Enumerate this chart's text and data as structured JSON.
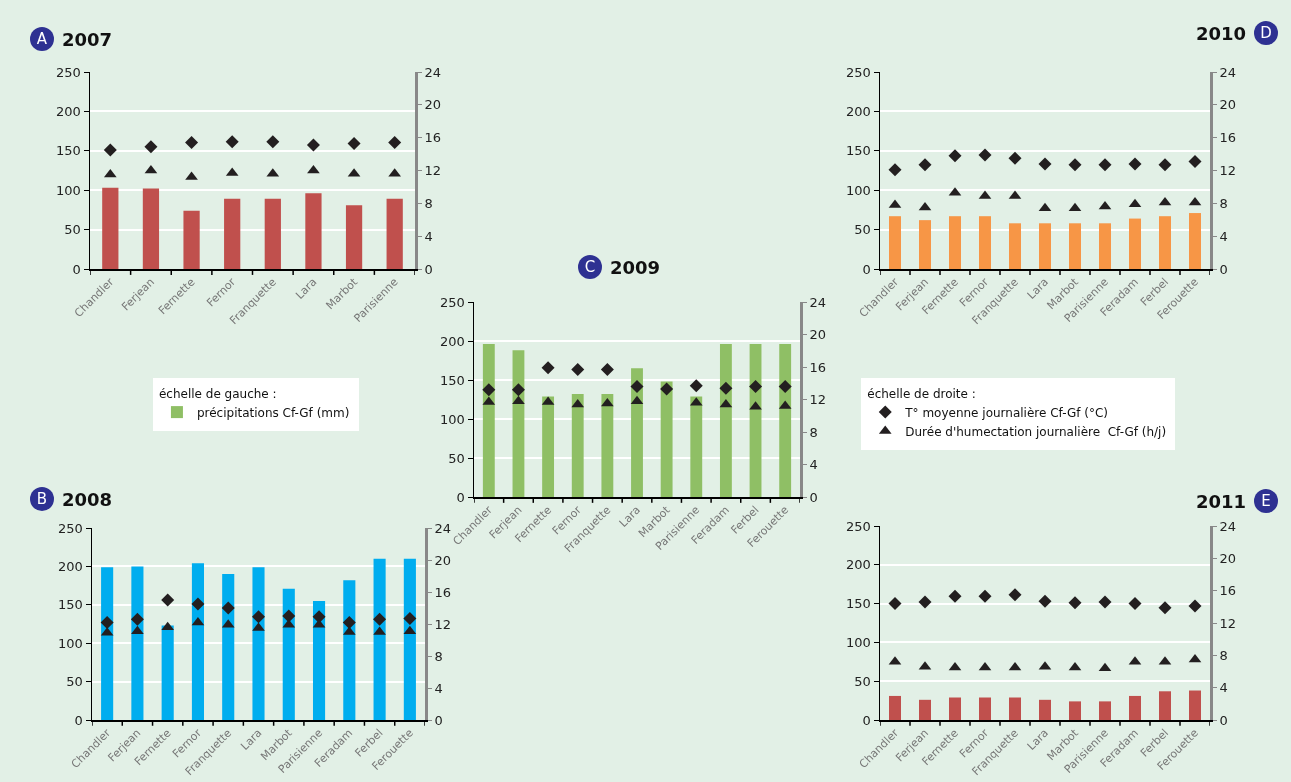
{
  "chart_data": [
    {
      "type": "bar",
      "title": "2007",
      "annotations": [
        "A"
      ],
      "categories": [
        "Chandler",
        "Ferjean",
        "Fernette",
        "Fernor",
        "Franquette",
        "Lara",
        "Marbot",
        "Parisienne"
      ],
      "series": [
        {
          "type": "bar",
          "color": "#c0504d",
          "values": [
            103,
            102,
            74,
            89,
            89,
            96,
            81,
            89
          ]
        },
        {
          "type": "scatter",
          "axis": "y2",
          "marker": "diamond",
          "color": "#231f20",
          "values": [
            14.5,
            14.9,
            15.4,
            15.5,
            15.5,
            15.1,
            15.3,
            15.4
          ]
        },
        {
          "type": "scatter",
          "axis": "y2",
          "marker": "triangle",
          "color": "#231f20",
          "values": [
            11.5,
            12.0,
            11.2,
            11.7,
            11.6,
            12.0,
            11.6,
            11.6
          ]
        }
      ],
      "ylim": [
        0,
        250
      ],
      "yticks": [
        0,
        50,
        100,
        150,
        200,
        250
      ],
      "y2lim": [
        0,
        24
      ],
      "y2ticks": [
        0,
        4,
        8,
        12,
        16,
        20,
        24
      ],
      "grid": "y"
    },
    {
      "type": "bar",
      "title": "2008",
      "annotations": [
        "B"
      ],
      "categories": [
        "Chandler",
        "Ferjean",
        "Fernette",
        "Fernor",
        "Franquette",
        "Lara",
        "Marbot",
        "Parisienne",
        "Feradam",
        "Ferbel",
        "Ferouette"
      ],
      "series": [
        {
          "type": "bar",
          "color": "#00adef",
          "values": [
            199,
            200,
            123,
            204,
            190,
            199,
            171,
            155,
            182,
            210,
            210
          ]
        },
        {
          "type": "scatter",
          "axis": "y2",
          "marker": "diamond",
          "color": "#231f20",
          "values": [
            12.2,
            12.6,
            15.0,
            14.5,
            14.0,
            12.9,
            13.0,
            12.9,
            12.2,
            12.6,
            12.7
          ]
        },
        {
          "type": "scatter",
          "axis": "y2",
          "marker": "triangle",
          "color": "#231f20",
          "values": [
            10.9,
            11.1,
            11.6,
            12.2,
            11.9,
            11.5,
            11.9,
            11.9,
            11.0,
            11.0,
            11.1
          ]
        }
      ],
      "ylim": [
        0,
        250
      ],
      "yticks": [
        0,
        50,
        100,
        150,
        200,
        250
      ],
      "y2lim": [
        0,
        24
      ],
      "y2ticks": [
        0,
        4,
        8,
        12,
        16,
        20,
        24
      ],
      "grid": "y"
    },
    {
      "type": "bar",
      "title": "2009",
      "annotations": [
        "C",
        "échelle de gauche :",
        "échelle de droite :"
      ],
      "categories": [
        "Chandler",
        "Ferjean",
        "Fernette",
        "Fernor",
        "Franquette",
        "Lara",
        "Marbot",
        "Parisienne",
        "Feradam",
        "Ferbel",
        "Ferouette"
      ],
      "series": [
        {
          "type": "bar",
          "name": "précipitations Cf-Gf (mm)",
          "color": "#8fbf65",
          "values": [
            196,
            188,
            129,
            132,
            132,
            165,
            148,
            129,
            196,
            196,
            196
          ]
        },
        {
          "type": "scatter",
          "axis": "y2",
          "marker": "diamond",
          "name": "T° moyenne journalière Cf-Gf (°C)",
          "color": "#231f20",
          "values": [
            13.2,
            13.2,
            15.9,
            15.7,
            15.7,
            13.6,
            13.3,
            13.7,
            13.4,
            13.6,
            13.6
          ]
        },
        {
          "type": "scatter",
          "axis": "y2",
          "marker": "triangle",
          "name": "Durée d'humectation journalière  Cf-Gf (h/j)",
          "color": "#231f20",
          "values": [
            11.7,
            11.8,
            11.7,
            11.4,
            11.5,
            11.8,
            null,
            11.6,
            11.4,
            11.1,
            11.2
          ]
        }
      ],
      "ylim": [
        0,
        250
      ],
      "yticks": [
        0,
        50,
        100,
        150,
        200,
        250
      ],
      "y2lim": [
        0,
        24
      ],
      "y2ticks": [
        0,
        4,
        8,
        12,
        16,
        20,
        24
      ],
      "grid": "y",
      "legend": "bottom"
    },
    {
      "type": "bar",
      "title": "2010",
      "annotations": [
        "D"
      ],
      "categories": [
        "Chandler",
        "Ferjean",
        "Fernette",
        "Fernor",
        "Franquette",
        "Lara",
        "Marbot",
        "Parisienne",
        "Feradam",
        "Ferbel",
        "Ferouette"
      ],
      "series": [
        {
          "type": "bar",
          "color": "#f79646",
          "values": [
            67,
            62,
            67,
            67,
            58,
            58,
            58,
            58,
            64,
            67,
            71
          ]
        },
        {
          "type": "scatter",
          "axis": "y2",
          "marker": "diamond",
          "color": "#231f20",
          "values": [
            12.1,
            12.7,
            13.8,
            13.9,
            13.5,
            12.8,
            12.7,
            12.7,
            12.8,
            12.7,
            13.1
          ]
        },
        {
          "type": "scatter",
          "axis": "y2",
          "marker": "triangle",
          "color": "#231f20",
          "values": [
            7.8,
            7.5,
            9.3,
            8.9,
            8.9,
            7.4,
            7.4,
            7.6,
            7.9,
            8.1,
            8.1
          ]
        }
      ],
      "ylim": [
        0,
        250
      ],
      "yticks": [
        0,
        50,
        100,
        150,
        200,
        250
      ],
      "y2lim": [
        0,
        24
      ],
      "y2ticks": [
        0,
        4,
        8,
        12,
        16,
        20,
        24
      ],
      "grid": "y"
    },
    {
      "type": "bar",
      "title": "2011",
      "annotations": [
        "E"
      ],
      "categories": [
        "Chandler",
        "Ferjean",
        "Fernette",
        "Fernor",
        "Franquette",
        "Lara",
        "Marbot",
        "Parisienne",
        "Feradam",
        "Ferbel",
        "Ferouette"
      ],
      "series": [
        {
          "type": "bar",
          "color": "#c0504d",
          "values": [
            31,
            26,
            29,
            29,
            29,
            26,
            24,
            24,
            31,
            37,
            38
          ]
        },
        {
          "type": "scatter",
          "axis": "y2",
          "marker": "diamond",
          "color": "#231f20",
          "values": [
            14.4,
            14.6,
            15.3,
            15.3,
            15.5,
            14.7,
            14.5,
            14.6,
            14.4,
            13.9,
            14.1
          ]
        },
        {
          "type": "scatter",
          "axis": "y2",
          "marker": "triangle",
          "color": "#231f20",
          "values": [
            7.2,
            6.6,
            6.5,
            6.5,
            6.5,
            6.6,
            6.5,
            6.4,
            7.2,
            7.2,
            7.5
          ]
        }
      ],
      "ylim": [
        0,
        250
      ],
      "yticks": [
        0,
        50,
        100,
        150,
        200,
        250
      ],
      "y2lim": [
        0,
        24
      ],
      "y2ticks": [
        0,
        4,
        8,
        12,
        16,
        20,
        24
      ],
      "grid": "y"
    }
  ]
}
